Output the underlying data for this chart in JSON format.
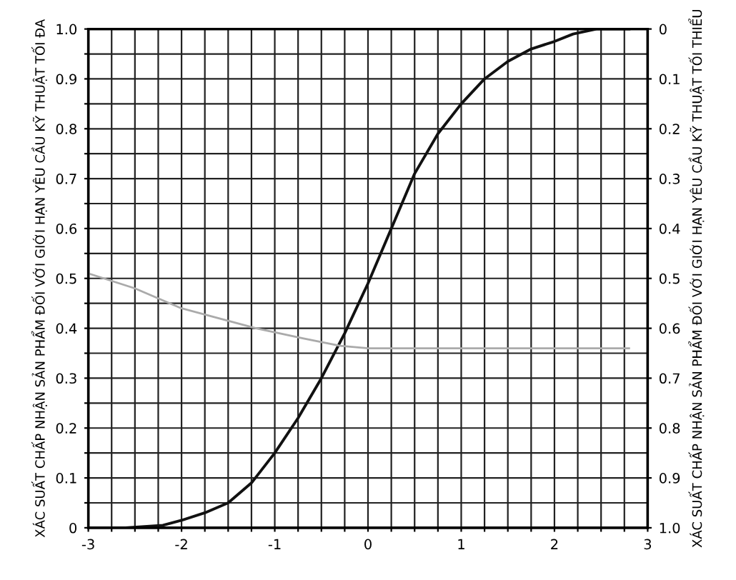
{
  "chart_data": {
    "type": "line",
    "ylabel": "XÁC SUẤT CHẤP NHẬN SẢN PHẨM ĐỐI VỚI GIỚI HẠN YÊU CẦU KỸ THUẬT TỐI ĐA",
    "y2label": "XÁC SUẤT CHẤP NHẬN SẢN PHẨM ĐỐI VỚI GIỚI HẠN YÊU CẦU KỸ THUẬT TỐI THIỂU",
    "xlim": [
      -3,
      3
    ],
    "xticks": [
      -3,
      {
        "value": -2.75,
        "label": null
      },
      {
        "value": -2.5,
        "label": null
      },
      {
        "value": -2.25,
        "label": null
      },
      -2,
      {
        "value": -1.75,
        "label": null
      },
      {
        "value": -1.5,
        "label": null
      },
      {
        "value": -1.25,
        "label": null
      },
      -1,
      {
        "value": -0.75,
        "label": null
      },
      {
        "value": -0.5,
        "label": null
      },
      {
        "value": -0.25,
        "label": null
      },
      0,
      {
        "value": 0.25,
        "label": null
      },
      {
        "value": 0.5,
        "label": null
      },
      {
        "value": 0.75,
        "label": null
      },
      1,
      {
        "value": 1.25,
        "label": null
      },
      {
        "value": 1.5,
        "label": null
      },
      {
        "value": 1.75,
        "label": null
      },
      2,
      {
        "value": 2.25,
        "label": null
      },
      {
        "value": 2.5,
        "label": null
      },
      {
        "value": 2.75,
        "label": null
      },
      3
    ],
    "ylim": [
      0,
      1
    ],
    "yticks": [
      0,
      {
        "value": 0.05,
        "label": null
      },
      0.1,
      {
        "value": 0.15,
        "label": null
      },
      0.2,
      {
        "value": 0.25,
        "label": null
      },
      0.3,
      {
        "value": 0.35,
        "label": null
      },
      0.4,
      {
        "value": 0.45,
        "label": null
      },
      0.5,
      {
        "value": 0.55,
        "label": null
      },
      0.6,
      {
        "value": 0.65,
        "label": null
      },
      0.7,
      {
        "value": 0.75,
        "label": null
      },
      0.8,
      {
        "value": 0.85,
        "label": null
      },
      0.9,
      {
        "value": 0.95,
        "label": null
      },
      {
        "value": 1,
        "label": "1.0"
      }
    ],
    "y2lim": [
      1,
      0
    ],
    "y2ticks": [
      0,
      0.1,
      0.2,
      0.3,
      0.4,
      0.5,
      0.6,
      0.7,
      0.8,
      0.9,
      {
        "value": 1,
        "label": "1.0"
      }
    ],
    "grid": true,
    "marker": "none",
    "line_style": "solid",
    "series": [
      {
        "color": "#111111",
        "x": [
          -3,
          -2.6,
          -2.2,
          -2.0,
          -1.75,
          -1.5,
          -1.25,
          -1.0,
          -0.75,
          -0.5,
          -0.25,
          0,
          0.25,
          0.5,
          0.75,
          1.0,
          1.25,
          1.5,
          1.75,
          2.0,
          2.2,
          2.45,
          2.8
        ],
        "values": [
          0,
          0,
          0.005,
          0.015,
          0.03,
          0.05,
          0.09,
          0.15,
          0.22,
          0.3,
          0.39,
          0.49,
          0.6,
          0.71,
          0.79,
          0.85,
          0.9,
          0.935,
          0.96,
          0.975,
          0.99,
          1.0,
          1.0
        ]
      },
      {
        "color": "#aaaaaa",
        "x": [
          -3,
          -2.5,
          -2.0,
          -1.6,
          -1.2,
          -0.7,
          -0.3,
          0,
          0.5,
          1.0,
          1.5,
          2.0,
          2.5,
          2.8
        ],
        "values": [
          0.51,
          0.48,
          0.44,
          0.42,
          0.4,
          0.38,
          0.365,
          0.36,
          0.36,
          0.36,
          0.36,
          0.36,
          0.36,
          0.36
        ]
      }
    ]
  }
}
